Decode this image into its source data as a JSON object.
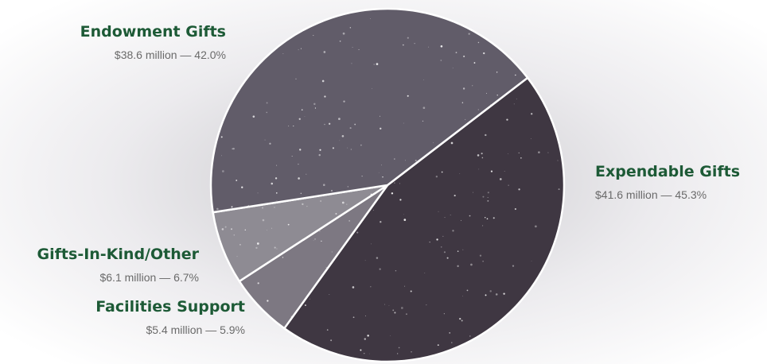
{
  "chart_data": {
    "type": "pie",
    "categories": [
      "Expendable Gifts",
      "Facilities Support",
      "Gifts-In-Kind/Other",
      "Endowment Gifts"
    ],
    "values": [
      45.3,
      5.9,
      6.7,
      42.0
    ],
    "value_labels": [
      "$41.6 million — 45.3%",
      "$5.4 million — 5.9%",
      "$6.1 million — 6.7%",
      "$38.6 million — 42.0%"
    ],
    "colors": [
      "#3f3742",
      "#7d7882",
      "#8e8b93",
      "#615c69"
    ]
  }
}
